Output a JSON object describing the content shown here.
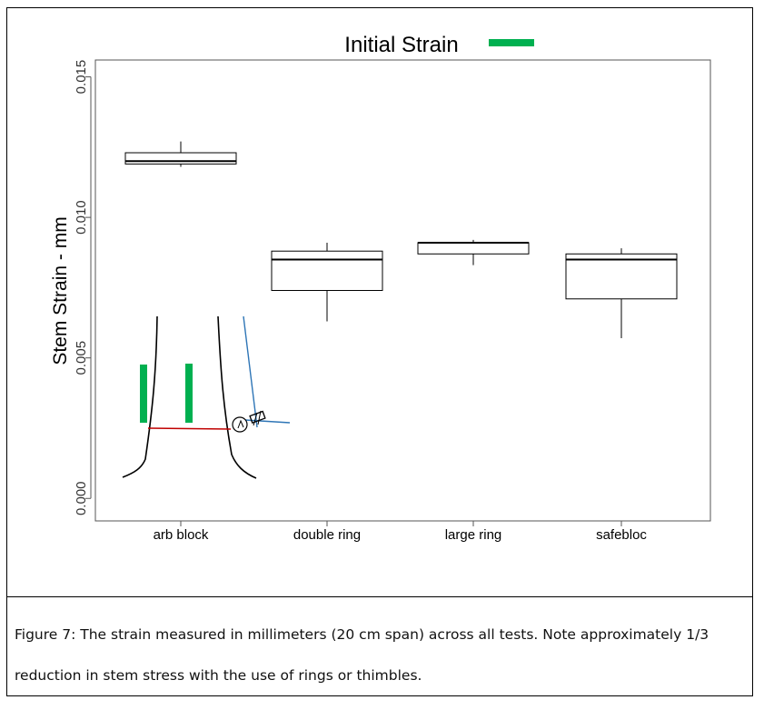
{
  "chart_data": {
    "type": "box",
    "title": "Initial Strain",
    "ylabel": "Stem Strain - mm",
    "ylim": [
      -0.0008,
      0.0156
    ],
    "y_ticks": [
      {
        "value": 0.0,
        "label": "0.000"
      },
      {
        "value": 0.005,
        "label": "0.005"
      },
      {
        "value": 0.01,
        "label": "0.010"
      },
      {
        "value": 0.015,
        "label": "0.015"
      }
    ],
    "categories": [
      "arb block",
      "double ring",
      "large ring",
      "safebloc"
    ],
    "boxes": [
      {
        "category": "arb block",
        "min": 0.0118,
        "q1": 0.0119,
        "median": 0.012,
        "q3": 0.0123,
        "max": 0.0127
      },
      {
        "category": "double ring",
        "min": 0.0063,
        "q1": 0.0074,
        "median": 0.0085,
        "q3": 0.0088,
        "max": 0.0091
      },
      {
        "category": "large ring",
        "min": 0.0083,
        "q1": 0.0087,
        "median": 0.0091,
        "q3": 0.0091,
        "max": 0.0092
      },
      {
        "category": "safebloc",
        "min": 0.0057,
        "q1": 0.0071,
        "median": 0.0085,
        "q3": 0.0087,
        "max": 0.0089
      }
    ],
    "legend": {
      "label": "Initial Strain",
      "color": "#00b050",
      "position": "top"
    },
    "colors": {
      "box": "#000000",
      "legend": "#00b050",
      "inset_green": "#00b050",
      "inset_red": "#c00000",
      "inset_blue": "#2e75b6"
    },
    "grid": false
  },
  "caption": {
    "line1": "Figure 7: The strain measured in millimeters (20 cm span) across all tests.  Note approximately 1/3",
    "line2": "reduction in stem stress with the use of rings or thimbles."
  }
}
